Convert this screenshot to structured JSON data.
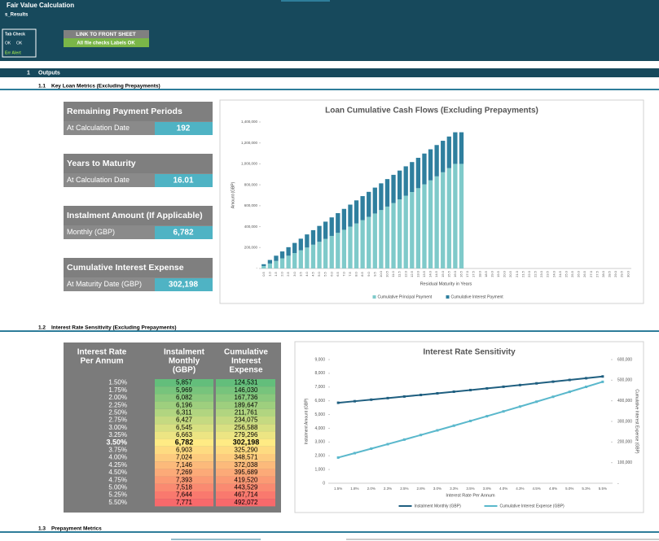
{
  "header": {
    "title": "Fair Value Calculation",
    "subtitle": "s_Results",
    "check": {
      "title": "Tab Check",
      "items": [
        "OK",
        "OK"
      ],
      "alert": "Err Alert"
    },
    "link_button": "LINK TO FRONT SHEET",
    "status": "All file checks Labels OK"
  },
  "outputs": {
    "number": "1",
    "title": "Outputs"
  },
  "subsections": [
    {
      "number": "1.1",
      "title": "Key Loan Metrics (Excluding Prepayments)"
    },
    {
      "number": "1.2",
      "title": "Interest Rate Sensitivity (Excluding Prepayments)"
    },
    {
      "number": "1.3",
      "title": "Prepayment Metrics"
    }
  ],
  "metrics": [
    {
      "title": "Remaining Payment Periods",
      "label": "At Calculation Date",
      "value": "192"
    },
    {
      "title": "Years to Maturity",
      "label": "At Calculation Date",
      "value": "16.01"
    },
    {
      "title": "Instalment Amount (If Applicable)",
      "label": "Monthly (GBP)",
      "value": "6,782"
    },
    {
      "title": "Cumulative Interest Expense",
      "label": "At Maturity Date (GBP)",
      "value": "302,198"
    }
  ],
  "table": {
    "headers": [
      [
        "Interest Rate",
        "Per Annum"
      ],
      [
        "Instalment",
        "Monthly",
        "(GBP)"
      ],
      [
        "Cumulative",
        "Interest",
        "Expense"
      ]
    ],
    "rows": [
      [
        "1.50%",
        "5,857",
        "124,531"
      ],
      [
        "1.75%",
        "5,969",
        "146,030"
      ],
      [
        "2.00%",
        "6,082",
        "167,736"
      ],
      [
        "2.25%",
        "6,196",
        "189,647"
      ],
      [
        "2.50%",
        "6,311",
        "211,761"
      ],
      [
        "2.75%",
        "6,427",
        "234,075"
      ],
      [
        "3.00%",
        "6,545",
        "256,588"
      ],
      [
        "3.25%",
        "6,663",
        "279,296"
      ],
      [
        "3.50%",
        "6,782",
        "302,198"
      ],
      [
        "3.75%",
        "6,903",
        "325,290"
      ],
      [
        "4.00%",
        "7,024",
        "348,571"
      ],
      [
        "4.25%",
        "7,146",
        "372,038"
      ],
      [
        "4.50%",
        "7,269",
        "395,689"
      ],
      [
        "4.75%",
        "7,393",
        "419,520"
      ],
      [
        "5.00%",
        "7,518",
        "443,529"
      ],
      [
        "5.25%",
        "7,644",
        "467,714"
      ],
      [
        "5.50%",
        "7,771",
        "492,072"
      ]
    ]
  },
  "chart_data": [
    {
      "type": "bar",
      "stacked": true,
      "title": "Loan Cumulative Cash Flows (Excluding Prepayments)",
      "x_label": "Residual Maturity in Years",
      "y_label": "Amount (GBP)",
      "legend": "bottom",
      "categories": [
        "0.5",
        "1.0",
        "1.5",
        "2.0",
        "2.5",
        "3.0",
        "3.5",
        "4.0",
        "4.5",
        "5.0",
        "5.5",
        "6.0",
        "6.5",
        "7.0",
        "7.5",
        "8.0",
        "8.5",
        "9.0",
        "9.5",
        "10.0",
        "10.5",
        "11.0",
        "11.5",
        "12.0",
        "12.5",
        "13.0",
        "13.5",
        "14.0",
        "14.5",
        "15.0",
        "15.5",
        "16.0",
        "16.5",
        "17.0",
        "17.5",
        "18.0",
        "18.5",
        "19.0",
        "19.5",
        "20.0",
        "20.5",
        "21.0",
        "21.5",
        "22.0",
        "22.5",
        "23.0",
        "23.5",
        "24.0",
        "24.5",
        "25.0",
        "25.5",
        "26.0",
        "26.5",
        "27.0",
        "27.5",
        "28.0",
        "28.5",
        "29.0",
        "29.5",
        "30.0"
      ],
      "series": [
        {
          "name": "Cumulative Principal Payment",
          "color": "#7fcaca",
          "values": [
            23526,
            47466,
            71828,
            96620,
            121848,
            147522,
            173648,
            200234,
            227289,
            254822,
            282839,
            311350,
            340364,
            369889,
            399935,
            430511,
            461625,
            493289,
            525511,
            558300,
            591666,
            625621,
            660175,
            695338,
            731121,
            767534,
            804589,
            842298,
            880669,
            919719,
            959456,
            999897,
            1000000,
            0,
            0,
            0,
            0,
            0,
            0,
            0,
            0,
            0,
            0,
            0,
            0,
            0,
            0,
            0,
            0,
            0,
            0,
            0,
            0,
            0,
            0,
            0,
            0,
            0,
            0,
            0
          ]
        },
        {
          "name": "Cumulative Interest Payment",
          "color": "#2f7f9e",
          "values": [
            17166,
            33918,
            50248,
            66148,
            81612,
            96630,
            111196,
            125302,
            138939,
            152098,
            164773,
            176954,
            188632,
            199799,
            210445,
            220561,
            230139,
            239167,
            247637,
            255540,
            262866,
            269603,
            275741,
            281270,
            286179,
            290458,
            294095,
            297078,
            299399,
            301041,
            301996,
            302150,
            302198,
            0,
            0,
            0,
            0,
            0,
            0,
            0,
            0,
            0,
            0,
            0,
            0,
            0,
            0,
            0,
            0,
            0,
            0,
            0,
            0,
            0,
            0,
            0,
            0,
            0,
            0,
            0
          ]
        }
      ],
      "ylim": [
        0,
        1400000
      ],
      "yticks": [
        {
          "value": 0,
          "label": "-"
        },
        {
          "value": 200000,
          "label": "200,000"
        },
        {
          "value": 400000,
          "label": "400,000"
        },
        {
          "value": 600000,
          "label": "600,000"
        },
        {
          "value": 800000,
          "label": "800,000"
        },
        {
          "value": 1000000,
          "label": "1,000,000"
        },
        {
          "value": 1200000,
          "label": "1,200,000"
        },
        {
          "value": 1400000,
          "label": "1,400,000"
        }
      ],
      "grid": false
    },
    {
      "type": "line",
      "title": "Interest Rate Sensitivity",
      "x_label": "Interest Rate Per Annum",
      "y_label": "Instalment Amount (GBP)",
      "y2_label": "Cumulative Interest Expense (GBP)",
      "legend": "bottom",
      "categories": [
        "1.5%",
        "1.8%",
        "2.0%",
        "2.3%",
        "2.5%",
        "2.8%",
        "3.0%",
        "3.3%",
        "3.5%",
        "3.8%",
        "4.0%",
        "4.3%",
        "4.5%",
        "4.8%",
        "5.0%",
        "5.3%",
        "5.5%"
      ],
      "series": [
        {
          "name": "Instalment Monthly (GBP)",
          "color": "#1f5f80",
          "values": [
            5857,
            5969,
            6082,
            6196,
            6311,
            6427,
            6545,
            6663,
            6782,
            6903,
            7024,
            7146,
            7269,
            7393,
            7518,
            7644,
            7771
          ]
        },
        {
          "name": "Cumulative Interest Expense (GBP)",
          "color": "#5ab8cc",
          "axis": "y2",
          "values": [
            124531,
            146030,
            167736,
            189647,
            211761,
            234075,
            256588,
            279296,
            302198,
            325290,
            348571,
            372038,
            395689,
            419520,
            443529,
            467714,
            492072
          ]
        }
      ],
      "ylim": [
        0,
        9000
      ],
      "yticks": [
        0,
        {
          "value": 1000,
          "label": "1,000"
        },
        {
          "value": 2000,
          "label": "2,000"
        },
        {
          "value": 3000,
          "label": "3,000"
        },
        {
          "value": 4000,
          "label": "4,000"
        },
        {
          "value": 5000,
          "label": "5,000"
        },
        {
          "value": 6000,
          "label": "6,000"
        },
        {
          "value": 7000,
          "label": "7,000"
        },
        {
          "value": 8000,
          "label": "8,000"
        },
        {
          "value": 9000,
          "label": "9,000"
        }
      ],
      "y2lim": [
        0,
        600000
      ],
      "y2ticks": [
        {
          "value": 0,
          "label": "-"
        },
        {
          "value": 100000,
          "label": "100,000"
        },
        {
          "value": 200000,
          "label": "200,000"
        },
        {
          "value": 300000,
          "label": "300,000"
        },
        {
          "value": 400000,
          "label": "400,000"
        },
        {
          "value": 500000,
          "label": "500,000"
        },
        {
          "value": 600000,
          "label": "600,000"
        }
      ],
      "grid": false
    }
  ]
}
